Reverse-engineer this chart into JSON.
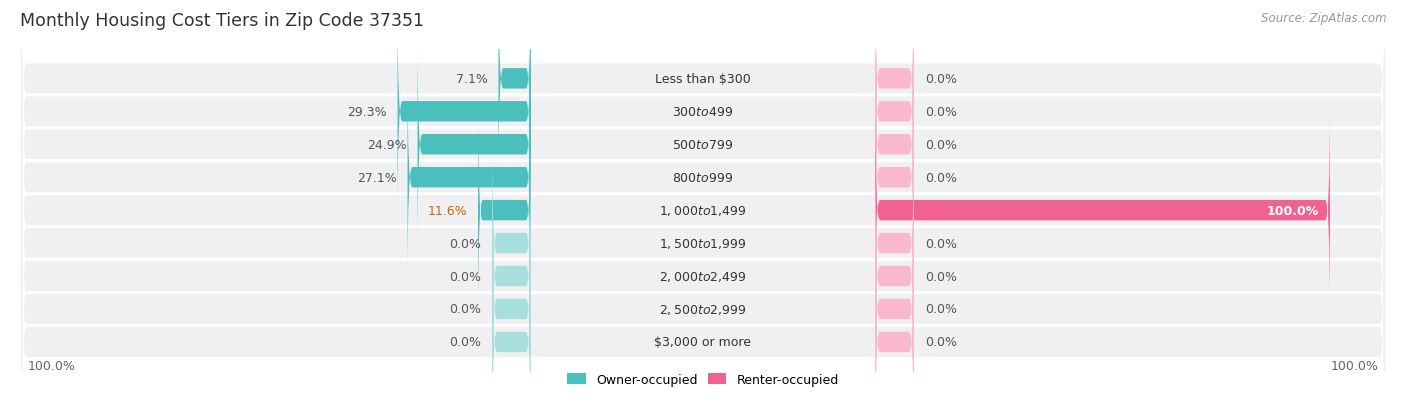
{
  "title": "Monthly Housing Cost Tiers in Zip Code 37351",
  "source": "Source: ZipAtlas.com",
  "categories": [
    "Less than $300",
    "$300 to $499",
    "$500 to $799",
    "$800 to $999",
    "$1,000 to $1,499",
    "$1,500 to $1,999",
    "$2,000 to $2,499",
    "$2,500 to $2,999",
    "$3,000 or more"
  ],
  "owner_values": [
    7.1,
    29.3,
    24.9,
    27.1,
    11.6,
    0.0,
    0.0,
    0.0,
    0.0
  ],
  "renter_values": [
    0.0,
    0.0,
    0.0,
    0.0,
    100.0,
    0.0,
    0.0,
    0.0,
    0.0
  ],
  "owner_color_full": "#4bbfbb",
  "owner_color_light": "#a8dedd",
  "renter_color_full": "#f06292",
  "renter_color_light": "#f9b8cf",
  "bg_row_odd": "#efefef",
  "bg_row_even": "#f8f8f8",
  "max_value": 100.0,
  "bar_height": 0.62,
  "title_fontsize": 12.5,
  "label_fontsize": 9.0,
  "cat_fontsize": 9.0,
  "source_fontsize": 8.5
}
